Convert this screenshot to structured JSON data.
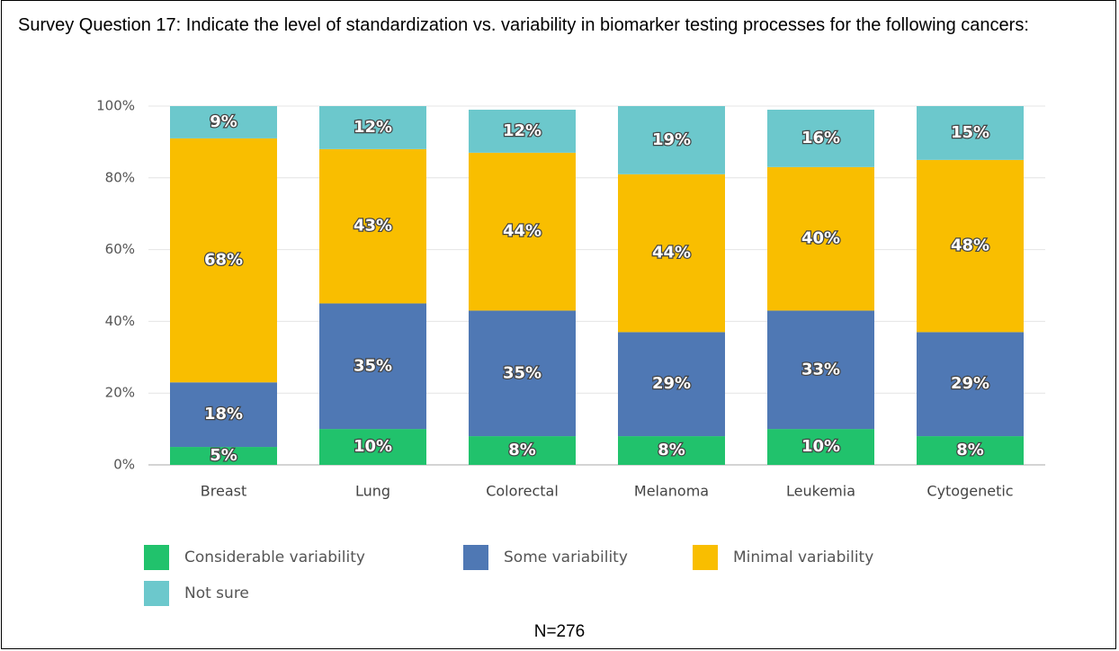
{
  "chart_data": {
    "type": "stacked_bar",
    "title": "Survey Question 17: Indicate the level of standardization vs. variability in biomarker testing processes for the following cancers:",
    "categories": [
      "Breast",
      "Lung",
      "Colorectal",
      "Melanoma",
      "Leukemia",
      "Cytogenetic"
    ],
    "series": [
      {
        "name": "Considerable variability",
        "color": "#21c26c",
        "values": [
          5,
          10,
          8,
          8,
          10,
          8
        ],
        "value_labels": [
          "5%",
          "10%",
          "8%",
          "8%",
          "10%",
          "8%"
        ]
      },
      {
        "name": "Some variability",
        "color": "#4f78b4",
        "values": [
          18,
          35,
          35,
          29,
          33,
          29
        ],
        "value_labels": [
          "18%",
          "35%",
          "35%",
          "29%",
          "33%",
          "29%"
        ]
      },
      {
        "name": "Minimal variability",
        "color": "#f9be00",
        "values": [
          68,
          43,
          44,
          44,
          40,
          48
        ],
        "value_labels": [
          "68%",
          "43%",
          "44%",
          "44%",
          "40%",
          "48%"
        ]
      },
      {
        "name": "Not sure",
        "color": "#6cc8cc",
        "values": [
          9,
          12,
          12,
          19,
          16,
          15
        ],
        "value_labels": [
          "9%",
          "12%",
          "12%",
          "19%",
          "16%",
          "15%"
        ]
      }
    ],
    "ylim": [
      0,
      100
    ],
    "yticks": [
      {
        "value": 0,
        "label": "0%"
      },
      {
        "value": 20,
        "label": "20%"
      },
      {
        "value": 40,
        "label": "40%"
      },
      {
        "value": 60,
        "label": "60%"
      },
      {
        "value": 80,
        "label": "80%"
      },
      {
        "value": 100,
        "label": "100%"
      }
    ],
    "grid": true,
    "note": "N=276"
  }
}
